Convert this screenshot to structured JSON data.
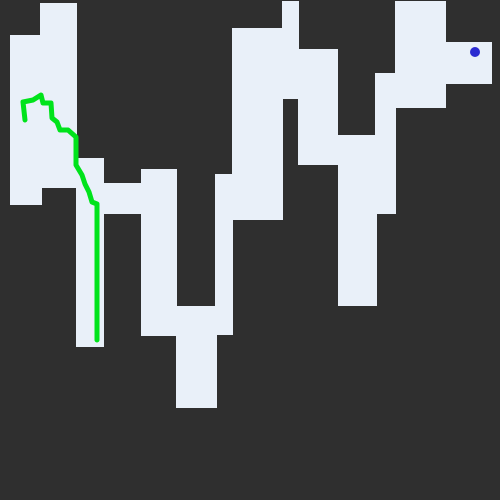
{
  "maze": {
    "colors": {
      "background": "#2f2f2f",
      "corridor": "#e9f0f9",
      "path": "#00e31b",
      "goal_marker": "#2b2bd1"
    },
    "markers": {
      "goal": "goal-dot",
      "drawn_path": "green-trail"
    }
  }
}
